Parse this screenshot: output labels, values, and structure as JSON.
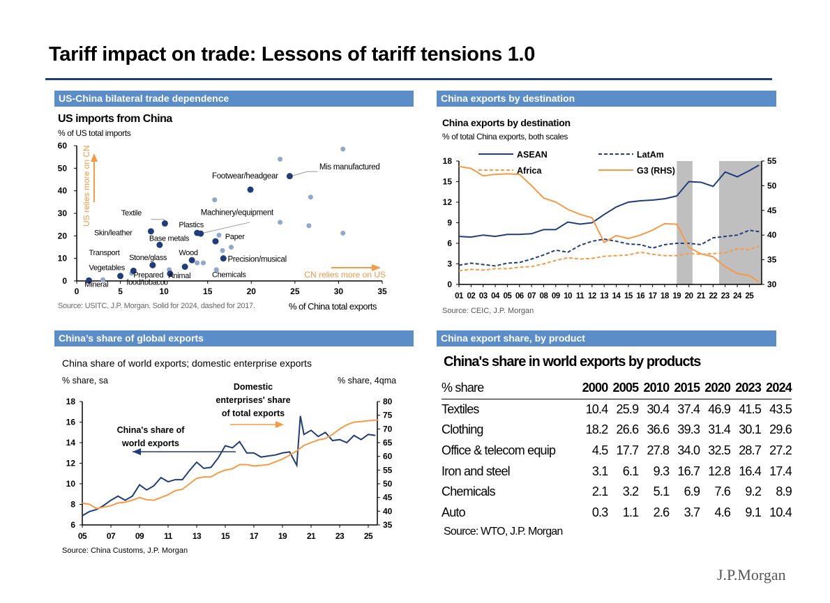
{
  "title": "Tariff impact on trade: Lessons of tariff tensions 1.0",
  "sections": {
    "tl": "US-China bilateral trade dependence",
    "tr": "China exports by destination",
    "bl": "China’s share of global exports",
    "br": "China export share, by product"
  },
  "logo": "J.P.Morgan",
  "chart_data": [
    {
      "type": "scatter",
      "title": "US imports from China",
      "subtitle": "% of US total imports",
      "xlabel": "% of China total exports",
      "xlim": [
        0,
        35
      ],
      "ylim": [
        0,
        60
      ],
      "xticks": [
        "0",
        "5",
        "10",
        "15",
        "20",
        "25",
        "30",
        "35"
      ],
      "yticks": [
        "0",
        "10",
        "20",
        "30",
        "40",
        "50",
        "60"
      ],
      "source": "Source: USITC, J.P. Morgan. Solid for 2024, dashed for 2017.",
      "annotations": {
        "y_arrow": "US relies more on CN",
        "x_arrow": "CN relies more on US"
      },
      "series": [
        {
          "name": "2024",
          "color": "#1f3d7a",
          "points": [
            [
              24.4,
              46.5
            ],
            [
              19.9,
              40.5
            ],
            [
              10.1,
              25.5
            ],
            [
              8.5,
              22
            ],
            [
              13.8,
              21.3
            ],
            [
              14.2,
              21
            ],
            [
              15.9,
              17.6
            ],
            [
              9.5,
              16
            ],
            [
              16.8,
              10
            ],
            [
              13.2,
              9.2
            ],
            [
              8.7,
              7
            ],
            [
              12.4,
              6.3
            ],
            [
              6.5,
              4.5
            ],
            [
              5,
              2.2
            ],
            [
              10.7,
              3.2
            ],
            [
              1.4,
              0.2
            ]
          ]
        },
        {
          "name": "2017",
          "color": "#8ea8cc",
          "points": [
            [
              30.5,
              58.5
            ],
            [
              23.3,
              54
            ],
            [
              15.8,
              36
            ],
            [
              26.8,
              37.2
            ],
            [
              23.3,
              26
            ],
            [
              26.6,
              24.5
            ],
            [
              30.5,
              21.2
            ],
            [
              16.3,
              20.3
            ],
            [
              17.7,
              15
            ],
            [
              16.7,
              13.5
            ],
            [
              13.8,
              8
            ],
            [
              14.5,
              8
            ],
            [
              10.6,
              5
            ],
            [
              16,
              5
            ],
            [
              6.3,
              3.4
            ],
            [
              3,
              0.5
            ]
          ]
        }
      ],
      "labels": [
        {
          "text": "Mis manufactured",
          "x": 27.8,
          "y": 49.5
        },
        {
          "text": "Footwear/headgear",
          "x": 15.5,
          "y": 45.5
        },
        {
          "text": "Textile",
          "x": 5.1,
          "y": 29
        },
        {
          "text": "Machinery/equipment",
          "x": 14.2,
          "y": 29.2
        },
        {
          "text": "Plastics",
          "x": 11.7,
          "y": 23.8
        },
        {
          "text": "Skin/leather",
          "x": 2.0,
          "y": 20.3
        },
        {
          "text": "Base metals",
          "x": 8.3,
          "y": 17.8
        },
        {
          "text": "Paper",
          "x": 17.0,
          "y": 18.6
        },
        {
          "text": "Transport",
          "x": 1.4,
          "y": 11.5
        },
        {
          "text": "Wood",
          "x": 11.7,
          "y": 11.5
        },
        {
          "text": "Stone/glass",
          "x": 6.0,
          "y": 9.3
        },
        {
          "text": "Precision/musical",
          "x": 17.3,
          "y": 8.5
        },
        {
          "text": "Vegetables",
          "x": 1.4,
          "y": 4.8
        },
        {
          "text": "Prepared",
          "x": 6.5,
          "y": 1.5
        },
        {
          "text": "food/tobacco",
          "x": 5.7,
          "y": -1.7
        },
        {
          "text": "Animal",
          "x": 10.5,
          "y": 1.3
        },
        {
          "text": "Chemicals",
          "x": 15.5,
          "y": 1.7
        },
        {
          "text": "Mineral",
          "x": 0.9,
          "y": -2.6
        }
      ]
    },
    {
      "type": "line",
      "title": "China exports by destination",
      "subtitle": "% of total China exports, both scales",
      "ylim": [
        0,
        18
      ],
      "y2lim": [
        30,
        55
      ],
      "yticks": [
        "0",
        "3",
        "6",
        "9",
        "12",
        "15",
        "18"
      ],
      "y2ticks": [
        "30",
        "35",
        "40",
        "45",
        "50",
        "55"
      ],
      "xticks": [
        "01",
        "02",
        "03",
        "04",
        "05",
        "06",
        "07",
        "08",
        "09",
        "10",
        "11",
        "12",
        "13",
        "14",
        "15",
        "16",
        "17",
        "18",
        "19",
        "20",
        "21",
        "22",
        "23",
        "24",
        "25"
      ],
      "shaded": [
        [
          2019,
          2020.3
        ],
        [
          2022.5,
          2026
        ]
      ],
      "source": "Source: CEIC, J.P. Morgan",
      "legend": "top",
      "x": [
        2001,
        2002,
        2003,
        2004,
        2005,
        2006,
        2007,
        2008,
        2009,
        2010,
        2011,
        2012,
        2013,
        2014,
        2015,
        2016,
        2017,
        2018,
        2019,
        2020,
        2021,
        2022,
        2023,
        2024,
        2025,
        2025.8
      ],
      "series": [
        {
          "name": "ASEAN",
          "axis": "left",
          "color": "#1f3d7a",
          "dash": false,
          "values": [
            7,
            6.9,
            7.2,
            7.0,
            7.3,
            7.3,
            7.4,
            8.0,
            8.0,
            9.1,
            8.8,
            9.0,
            10.2,
            11.3,
            12.0,
            12.2,
            12.3,
            12.5,
            12.9,
            15.0,
            14.9,
            14.3,
            16.4,
            15.7,
            16.6,
            17.4
          ]
        },
        {
          "name": "LatAm",
          "axis": "left",
          "color": "#1f3d7a",
          "dash": true,
          "values": [
            2.8,
            3.1,
            2.9,
            2.7,
            3.1,
            3.2,
            3.7,
            4.3,
            5.0,
            4.7,
            5.7,
            6.3,
            6.6,
            6.3,
            5.9,
            5.8,
            5.3,
            5.8,
            6.0,
            6.0,
            5.8,
            6.8,
            7.0,
            7.2,
            7.9,
            7.7
          ]
        },
        {
          "name": "Africa",
          "axis": "left",
          "color": "#f79a45",
          "dash": true,
          "values": [
            2.0,
            2.2,
            2.1,
            2.3,
            2.3,
            2.5,
            2.6,
            3.0,
            3.5,
            3.9,
            3.7,
            3.8,
            4.1,
            4.2,
            4.3,
            4.7,
            4.4,
            4.2,
            4.2,
            4.5,
            4.4,
            4.5,
            4.6,
            5.2,
            5.1,
            5.6
          ]
        },
        {
          "name": "G3 (RHS)",
          "axis": "right",
          "color": "#f79a45",
          "dash": false,
          "values": [
            53.9,
            53.5,
            52.0,
            52.3,
            52.4,
            52.3,
            50.0,
            47.5,
            46.7,
            45.2,
            44.2,
            43.5,
            38.5,
            39.9,
            39.3,
            40.0,
            41.0,
            42.3,
            42.2,
            37.5,
            36.2,
            35.6,
            33.6,
            32.2,
            31.8,
            30.5
          ]
        }
      ]
    },
    {
      "type": "line",
      "title": "China share of world exports; domestic enterprise exports",
      "ylabel": "% share, sa",
      "y2label": "% share, 4qma",
      "ylim": [
        6,
        18
      ],
      "y2lim": [
        35,
        80
      ],
      "yticks": [
        "6",
        "8",
        "10",
        "12",
        "14",
        "16",
        "18"
      ],
      "y2ticks": [
        "35",
        "40",
        "45",
        "50",
        "55",
        "60",
        "65",
        "70",
        "75",
        "80"
      ],
      "xticks": [
        "05",
        "07",
        "09",
        "11",
        "13",
        "15",
        "17",
        "19",
        "21",
        "23",
        "25"
      ],
      "source": "Source: China Customs, J.P. Morgan",
      "series": [
        {
          "name": "China's share of world exports",
          "axis": "left",
          "color": "#1f3d7a",
          "x": [
            2005,
            2005.5,
            2006,
            2006.5,
            2007,
            2007.5,
            2008,
            2008.5,
            2009,
            2009.5,
            2010,
            2010.5,
            2011,
            2011.5,
            2012,
            2012.5,
            2013,
            2013.5,
            2014,
            2014.5,
            2015,
            2015.5,
            2016,
            2016.5,
            2017,
            2017.5,
            2018,
            2018.5,
            2019,
            2019.5,
            2020,
            2020.25,
            2020.5,
            2021,
            2021.5,
            2022,
            2022.5,
            2023,
            2023.5,
            2024,
            2024.5,
            2025,
            2025.5
          ],
          "values": [
            6.9,
            7.3,
            7.5,
            7.9,
            8.4,
            8.8,
            8.4,
            8.8,
            9.9,
            9.4,
            9.8,
            10.6,
            10.2,
            10.4,
            10.4,
            11.3,
            12.1,
            11.5,
            11.6,
            12.5,
            13.7,
            13.5,
            14.1,
            13.0,
            13.0,
            12.6,
            12.7,
            12.8,
            13.0,
            13.1,
            11.8,
            16.6,
            14.8,
            15.2,
            14.6,
            15.0,
            14.2,
            14.3,
            14.0,
            14.7,
            14.3,
            14.8,
            14.7
          ]
        },
        {
          "name": "Domestic enterprises' share of total exports",
          "axis": "right",
          "color": "#f79a45",
          "x": [
            2005,
            2005.5,
            2006,
            2006.5,
            2007,
            2007.5,
            2008,
            2008.5,
            2009,
            2009.5,
            2010,
            2010.5,
            2011,
            2011.5,
            2012,
            2012.5,
            2013,
            2013.5,
            2014,
            2014.5,
            2015,
            2015.5,
            2016,
            2016.5,
            2017,
            2017.5,
            2018,
            2018.5,
            2019,
            2019.5,
            2020,
            2020.5,
            2021,
            2021.5,
            2022,
            2022.5,
            2023,
            2023.5,
            2024,
            2024.5,
            2025,
            2025.7
          ],
          "values": [
            43,
            42.5,
            41,
            41.5,
            42,
            43,
            43.3,
            44,
            45,
            44.2,
            44,
            45,
            46,
            47.5,
            48,
            50,
            52,
            52.5,
            52.5,
            54,
            55,
            55.5,
            57,
            57,
            56.5,
            56.7,
            57,
            58,
            59,
            60.5,
            62,
            64,
            65,
            66,
            66.5,
            68,
            70,
            71.5,
            72.5,
            72.7,
            73,
            73.3
          ]
        }
      ]
    },
    {
      "type": "table",
      "title": "China's share in world exports by products",
      "source": "Source: WTO, J.P. Morgan",
      "columns": [
        "% share",
        "2000",
        "2005",
        "2010",
        "2015",
        "2020",
        "2023",
        "2024"
      ],
      "rows": [
        [
          "Textiles",
          "10.4",
          "25.9",
          "30.4",
          "37.4",
          "46.9",
          "41.5",
          "43.5"
        ],
        [
          "Clothing",
          "18.2",
          "26.6",
          "36.6",
          "39.3",
          "31.4",
          "30.1",
          "29.6"
        ],
        [
          "Office & telecom equip",
          "4.5",
          "17.7",
          "27.8",
          "34.0",
          "32.5",
          "28.7",
          "27.2"
        ],
        [
          "Iron and steel",
          "3.1",
          "6.1",
          "9.3",
          "16.7",
          "12.8",
          "16.4",
          "17.4"
        ],
        [
          "Chemicals",
          "2.1",
          "3.2",
          "5.1",
          "6.9",
          "7.6",
          "9.2",
          "8.9"
        ],
        [
          "Auto",
          "0.3",
          "1.1",
          "2.6",
          "3.7",
          "4.6",
          "9.1",
          "10.4"
        ]
      ]
    }
  ]
}
